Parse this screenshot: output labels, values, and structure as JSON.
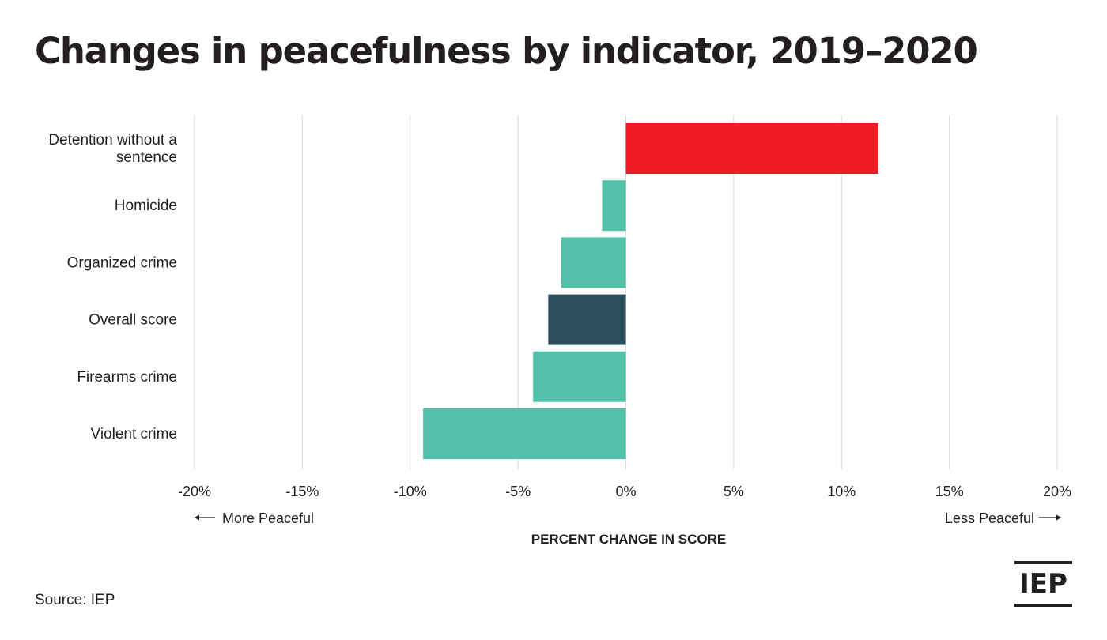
{
  "title": "Changes in peacefulness by indicator, 2019–2020",
  "source": "Source: IEP",
  "logo_text": "IEP",
  "chart_data": {
    "type": "bar",
    "orientation": "horizontal",
    "title": "Changes in peacefulness by indicator, 2019–2020",
    "xlabel": "PERCENT CHANGE IN SCORE",
    "ylabel": "",
    "categories": [
      "Detention without a sentence",
      "Homicide",
      "Organized crime",
      "Overall score",
      "Firearms crime",
      "Violent crime"
    ],
    "values": [
      11.7,
      -1.1,
      -3.0,
      -3.6,
      -4.3,
      -9.4
    ],
    "bar_colors": [
      "#ed1c24",
      "#53c1a9",
      "#53c1a9",
      "#2c4f5e",
      "#53c1a9",
      "#53c1a9"
    ],
    "xlim": [
      -20,
      20
    ],
    "x_ticks": [
      -20,
      -15,
      -10,
      -5,
      0,
      5,
      10,
      15,
      20
    ],
    "x_tick_labels": [
      "-20%",
      "-15%",
      "-10%",
      "-5%",
      "0%",
      "5%",
      "10%",
      "15%",
      "20%"
    ],
    "direction_labels": {
      "left": "More Peaceful",
      "right": "Less Peaceful"
    },
    "grid": true,
    "legend": "none"
  }
}
